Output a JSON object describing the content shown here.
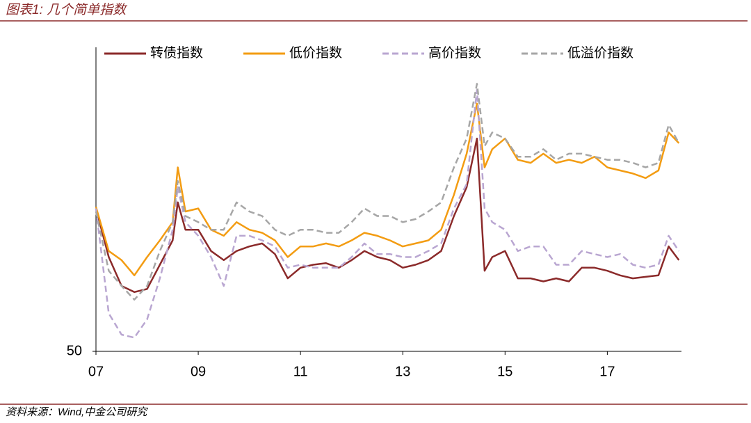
{
  "chart_data": {
    "type": "line",
    "title": "图表1: 几个简单指数",
    "source": "资料来源：Wind,中金公司研究",
    "x": [
      2007,
      2007.25,
      2007.5,
      2007.75,
      2008,
      2008.25,
      2008.5,
      2008.6,
      2008.75,
      2009,
      2009.25,
      2009.5,
      2009.75,
      2010,
      2010.25,
      2010.5,
      2010.75,
      2011,
      2011.25,
      2011.5,
      2011.75,
      2012,
      2012.25,
      2012.5,
      2012.75,
      2013,
      2013.25,
      2013.5,
      2013.75,
      2014,
      2014.25,
      2014.45,
      2014.6,
      2014.75,
      2015,
      2015.25,
      2015.5,
      2015.75,
      2016,
      2016.25,
      2016.5,
      2016.75,
      2017,
      2017.25,
      2017.5,
      2017.75,
      2018,
      2018.2,
      2018.4
    ],
    "series": [
      {
        "name": "转债指数",
        "color": "#8b2a2a",
        "dash": false,
        "values": [
          144,
          112,
          93,
          89,
          91,
          107,
          123,
          148,
          130,
          130,
          116,
          110,
          116,
          119,
          121,
          114,
          98,
          105,
          107,
          108,
          105,
          110,
          116,
          112,
          110,
          105,
          107,
          110,
          116,
          139,
          158,
          190,
          103,
          112,
          116,
          98,
          98,
          96,
          98,
          96,
          105,
          105,
          103,
          100,
          98,
          99,
          100,
          119,
          110
        ]
      },
      {
        "name": "低价指数",
        "color": "#f39c12",
        "dash": false,
        "values": [
          145,
          116,
          110,
          100,
          112,
          123,
          135,
          171,
          142,
          144,
          130,
          126,
          135,
          130,
          128,
          123,
          112,
          119,
          119,
          121,
          119,
          123,
          128,
          126,
          123,
          119,
          121,
          123,
          130,
          153,
          180,
          213,
          171,
          183,
          190,
          176,
          174,
          180,
          174,
          176,
          174,
          178,
          171,
          169,
          167,
          164,
          169,
          194,
          187
        ]
      },
      {
        "name": "高价指数",
        "color": "#b9a6d1",
        "dash": true,
        "values": [
          144,
          75,
          61,
          59,
          71,
          98,
          130,
          158,
          135,
          126,
          112,
          93,
          126,
          126,
          123,
          119,
          105,
          107,
          105,
          105,
          105,
          112,
          121,
          114,
          114,
          112,
          112,
          116,
          121,
          144,
          160,
          222,
          144,
          135,
          130,
          116,
          119,
          119,
          107,
          107,
          116,
          114,
          112,
          114,
          107,
          105,
          107,
          126,
          116
        ]
      },
      {
        "name": "低溢价指数",
        "color": "#a6a6a6",
        "dash": true,
        "values": [
          142,
          103,
          93,
          84,
          93,
          116,
          135,
          162,
          139,
          135,
          130,
          130,
          148,
          142,
          139,
          130,
          126,
          130,
          130,
          128,
          128,
          135,
          144,
          139,
          139,
          135,
          137,
          142,
          148,
          171,
          190,
          226,
          185,
          194,
          190,
          178,
          178,
          183,
          176,
          180,
          180,
          178,
          176,
          176,
          174,
          171,
          174,
          199,
          187
        ]
      }
    ],
    "xlim": [
      2007,
      2018.45
    ],
    "xticks": [
      {
        "value": 2007,
        "label": "07"
      },
      {
        "value": 2009,
        "label": "09"
      },
      {
        "value": 2011,
        "label": "11"
      },
      {
        "value": 2013,
        "label": "13"
      },
      {
        "value": 2015,
        "label": "15"
      },
      {
        "value": 2017,
        "label": "17"
      }
    ],
    "ylim": [
      50,
      250
    ],
    "yticks": [
      50
    ],
    "grid": false
  }
}
